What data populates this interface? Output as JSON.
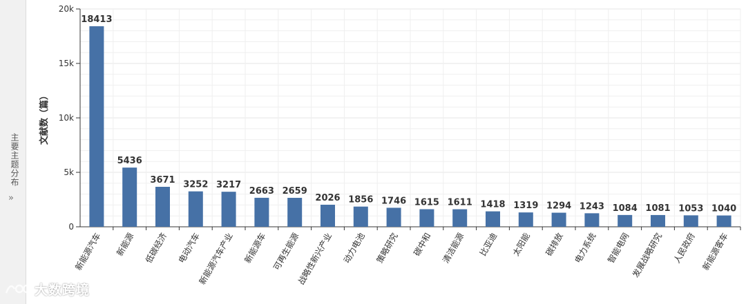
{
  "side_tab": {
    "label": "主要主题分布",
    "arrow": "»"
  },
  "watermark": {
    "text": "大数跨境"
  },
  "colors": {
    "bar": "#4671a6",
    "grid": "#e6e6e6",
    "axis": "#333333",
    "label": "#333333"
  },
  "chart_data": {
    "type": "bar",
    "ylabel": "文献数（篇）",
    "ylim": [
      0,
      20000
    ],
    "yticks": [
      {
        "value": 0,
        "label": "0"
      },
      {
        "value": 5000,
        "label": "5k"
      },
      {
        "value": 10000,
        "label": "10k"
      },
      {
        "value": 15000,
        "label": "15k"
      },
      {
        "value": 20000,
        "label": "20k"
      }
    ],
    "grid": true,
    "categories": [
      "新能源汽车",
      "新能源",
      "低碳经济",
      "电动汽车",
      "新能源汽车产业",
      "新能源车",
      "可再生能源",
      "战略性新兴产业",
      "动力电池",
      "策略研究",
      "碳中和",
      "清洁能源",
      "比亚迪",
      "太阳能",
      "碳排放",
      "电力系统",
      "智能电网",
      "发展战略研究",
      "人民政府",
      "新能源客车"
    ],
    "values": [
      18413,
      5436,
      3671,
      3252,
      3217,
      2663,
      2659,
      2026,
      1856,
      1746,
      1615,
      1611,
      1418,
      1319,
      1294,
      1243,
      1084,
      1081,
      1053,
      1040
    ]
  }
}
